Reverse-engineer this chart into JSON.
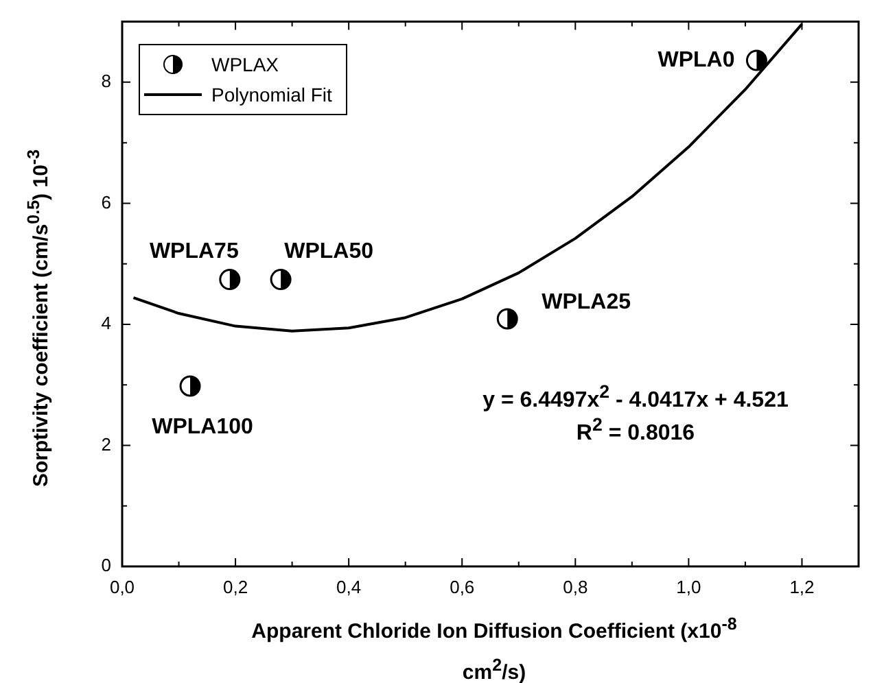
{
  "chart_data": {
    "type": "scatter",
    "xlabel": "Apparent Chloride Ion Diffusion Coefficient (x10$^{-8}$ cm$^{2}$/s)",
    "ylabel": "Sorptivity coefficient (cm/s$^{0.5}$) 10$^{-3}$",
    "xlim": [
      0,
      1.3
    ],
    "ylim": [
      0,
      9
    ],
    "xticks": [
      {
        "value": 0,
        "label": "0,0"
      },
      {
        "value": 0.1,
        "label": null
      },
      {
        "value": 0.2,
        "label": "0,2"
      },
      {
        "value": 0.3,
        "label": null
      },
      {
        "value": 0.4,
        "label": "0,4"
      },
      {
        "value": 0.5,
        "label": null
      },
      {
        "value": 0.6,
        "label": "0,6"
      },
      {
        "value": 0.7,
        "label": null
      },
      {
        "value": 0.8,
        "label": "0,8"
      },
      {
        "value": 0.9,
        "label": null
      },
      {
        "value": 1.0,
        "label": "1,0"
      },
      {
        "value": 1.1,
        "label": null
      },
      {
        "value": 1.2,
        "label": "1,2"
      }
    ],
    "yticks": [
      0,
      {
        "value": 1,
        "label": null
      },
      2,
      {
        "value": 3,
        "label": null
      },
      4,
      {
        "value": 5,
        "label": null
      },
      6,
      {
        "value": 7,
        "label": null
      },
      8
    ],
    "legend": "top left",
    "grid": false,
    "series": [
      {
        "name": "WPLAX",
        "type": "scatter",
        "marker": "circle",
        "color": "#000000",
        "x": [
          0.12,
          0.19,
          0.28,
          0.68,
          1.12
        ],
        "values": [
          2.98,
          4.74,
          4.74,
          4.09,
          8.36
        ]
      },
      {
        "name": "Polynomial Fit",
        "type": "line",
        "marker": "none",
        "line_style": "solid",
        "color": "#000000",
        "x": [
          0.02,
          0.1,
          0.2,
          0.3,
          0.4,
          0.5,
          0.6,
          0.7,
          0.8,
          0.9,
          1.0,
          1.1,
          1.2
        ],
        "values": [
          4.44,
          4.18,
          3.97,
          3.89,
          3.94,
          4.11,
          4.42,
          4.85,
          5.42,
          6.11,
          6.93,
          7.88,
          8.96
        ]
      }
    ],
    "annotations": [
      {
        "text": "WPLA100",
        "x": 0.12,
        "y": 2.98
      },
      {
        "text": "WPLA75",
        "x": 0.19,
        "y": 4.74
      },
      {
        "text": "WPLA50",
        "x": 0.28,
        "y": 4.74
      },
      {
        "text": "WPLA25",
        "x": 0.68,
        "y": 4.09
      },
      {
        "text": "WPLA0",
        "x": 1.12,
        "y": 8.36
      },
      "y = 6.4497x$^{2}$ - 4.0417x + 4.521",
      "R$^{2}$ = 0.8016"
    ]
  }
}
